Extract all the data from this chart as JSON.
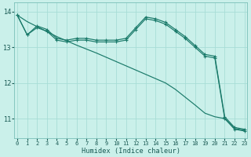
{
  "xlabel": "Humidex (Indice chaleur)",
  "bg_color": "#caf0ea",
  "grid_color": "#a8ddd6",
  "line_color": "#1a7a6a",
  "xlim": [
    -0.3,
    23.3
  ],
  "ylim": [
    10.45,
    14.25
  ],
  "yticks": [
    11,
    12,
    13,
    14
  ],
  "xticks": [
    0,
    1,
    2,
    3,
    4,
    5,
    6,
    7,
    8,
    9,
    10,
    11,
    12,
    13,
    14,
    15,
    16,
    17,
    18,
    19,
    20,
    21,
    22,
    23
  ],
  "s1_x": [
    0,
    1,
    2,
    3,
    4,
    5,
    6,
    7,
    8,
    9,
    10,
    11,
    12,
    13,
    14,
    15,
    16,
    17,
    18,
    19,
    20,
    21,
    22,
    23
  ],
  "s1_y": [
    13.9,
    13.35,
    13.6,
    13.5,
    13.25,
    13.2,
    13.25,
    13.25,
    13.2,
    13.2,
    13.2,
    13.25,
    13.55,
    13.85,
    13.8,
    13.7,
    13.5,
    13.3,
    13.05,
    12.8,
    12.75,
    11.05,
    10.75,
    10.7
  ],
  "s2_x": [
    0,
    1,
    2,
    3,
    4,
    5,
    6,
    7,
    8,
    9,
    10,
    11,
    12,
    13,
    14,
    15,
    16,
    17,
    18,
    19,
    20,
    21,
    22,
    23
  ],
  "s2_y": [
    13.9,
    13.35,
    13.55,
    13.45,
    13.2,
    13.15,
    13.2,
    13.2,
    13.15,
    13.15,
    13.15,
    13.2,
    13.5,
    13.8,
    13.75,
    13.65,
    13.45,
    13.25,
    13.0,
    12.75,
    12.7,
    11.0,
    10.7,
    10.65
  ],
  "diag_x": [
    0,
    1,
    2,
    3,
    4,
    5,
    6,
    7,
    8,
    9,
    10,
    11,
    12,
    13,
    14,
    15,
    16,
    17,
    18,
    19,
    20,
    21,
    22,
    23
  ],
  "diag_y": [
    13.9,
    13.72,
    13.58,
    13.44,
    13.3,
    13.18,
    13.06,
    12.95,
    12.84,
    12.72,
    12.6,
    12.48,
    12.36,
    12.24,
    12.12,
    12.0,
    11.82,
    11.6,
    11.38,
    11.15,
    11.05,
    11.0,
    10.72,
    10.67
  ]
}
